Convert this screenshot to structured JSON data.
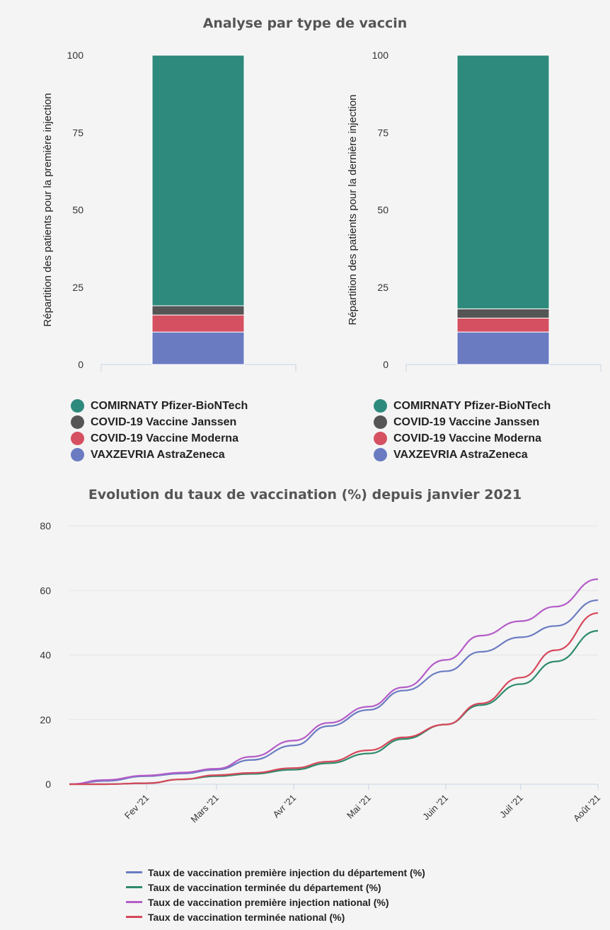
{
  "top_title": "Analyse par type de vaccin",
  "bottom_title": "Evolution du taux de vaccination (%) depuis janvier 2021",
  "colors": {
    "pfizer": "#2d8a7c",
    "janssen": "#555555",
    "moderna": "#d55060",
    "astrazeneca": "#6a7bc2",
    "dept_first": "#6a7bc2",
    "dept_full": "#2d8a6c",
    "nat_first": "#b45cc8",
    "nat_full": "#d6475a"
  },
  "vaccine_legend": [
    "COMIRNATY Pfizer-BioNTech",
    "COVID-19 Vaccine Janssen",
    "COVID-19 Vaccine Moderna",
    "VAXZEVRIA AstraZeneca"
  ],
  "line_legend": [
    "Taux de vaccination première injection du département (%)",
    "Taux de vaccination terminée du département (%)",
    "Taux de vaccination première injection national (%)",
    "Taux de vaccination terminée national (%)"
  ],
  "chart_data": [
    {
      "type": "bar",
      "stacked": true,
      "ylabel": "Répartition des patients pour la première injection",
      "ylim": [
        0,
        100
      ],
      "yticks": [
        "0",
        "25",
        "50",
        "75",
        "100"
      ],
      "series": [
        {
          "name": "VAXZEVRIA AstraZeneca",
          "values": [
            10.5
          ]
        },
        {
          "name": "COVID-19 Vaccine Moderna",
          "values": [
            5.5
          ]
        },
        {
          "name": "COVID-19 Vaccine Janssen",
          "values": [
            3
          ]
        },
        {
          "name": "COMIRNATY Pfizer-BioNTech",
          "values": [
            81
          ]
        }
      ]
    },
    {
      "type": "bar",
      "stacked": true,
      "ylabel": "Répartition des patients pour la dernière injection",
      "ylim": [
        0,
        100
      ],
      "yticks": [
        "0",
        "25",
        "50",
        "75",
        "100"
      ],
      "series": [
        {
          "name": "VAXZEVRIA AstraZeneca",
          "values": [
            10.5
          ]
        },
        {
          "name": "COVID-19 Vaccine Moderna",
          "values": [
            4.5
          ]
        },
        {
          "name": "COVID-19 Vaccine Janssen",
          "values": [
            3
          ]
        },
        {
          "name": "COMIRNATY Pfizer-BioNTech",
          "values": [
            82
          ]
        }
      ]
    },
    {
      "type": "line",
      "ylim": [
        0,
        80
      ],
      "yticks": [
        "0",
        "20",
        "40",
        "60",
        "80"
      ],
      "x_ticks": [
        "Fev '21",
        "Mars '21",
        "Avr '21",
        "Mai '21",
        "Juin '21",
        "Juil '21",
        "Août '21"
      ],
      "x": [
        "2021-01-01",
        "2021-01-15",
        "2021-02-01",
        "2021-02-15",
        "2021-03-01",
        "2021-03-15",
        "2021-04-01",
        "2021-04-15",
        "2021-05-01",
        "2021-05-15",
        "2021-06-01",
        "2021-06-15",
        "2021-07-01",
        "2021-07-15",
        "2021-08-01"
      ],
      "series": [
        {
          "name": "Taux de vaccination première injection du département (%)",
          "values": [
            0,
            1,
            2.5,
            3.3,
            4.5,
            7.5,
            12,
            18,
            23,
            29,
            35,
            41,
            45.5,
            49,
            57
          ]
        },
        {
          "name": "Taux de vaccination terminée du département (%)",
          "values": [
            0,
            0,
            0.3,
            1.5,
            2.5,
            3.2,
            4.5,
            6.5,
            9.5,
            14,
            18.5,
            24.5,
            31,
            38,
            47.5
          ]
        },
        {
          "name": "Taux de vaccination première injection national (%)",
          "values": [
            0,
            1.3,
            2.7,
            3.6,
            4.8,
            8.5,
            13.5,
            19,
            24,
            30,
            38.5,
            46,
            50.5,
            55,
            63.5
          ]
        },
        {
          "name": "Taux de vaccination terminée national (%)",
          "values": [
            0,
            0,
            0.3,
            1.5,
            2.8,
            3.5,
            5,
            7,
            10.5,
            14.5,
            18.5,
            25,
            33,
            41.5,
            53
          ]
        }
      ]
    }
  ]
}
